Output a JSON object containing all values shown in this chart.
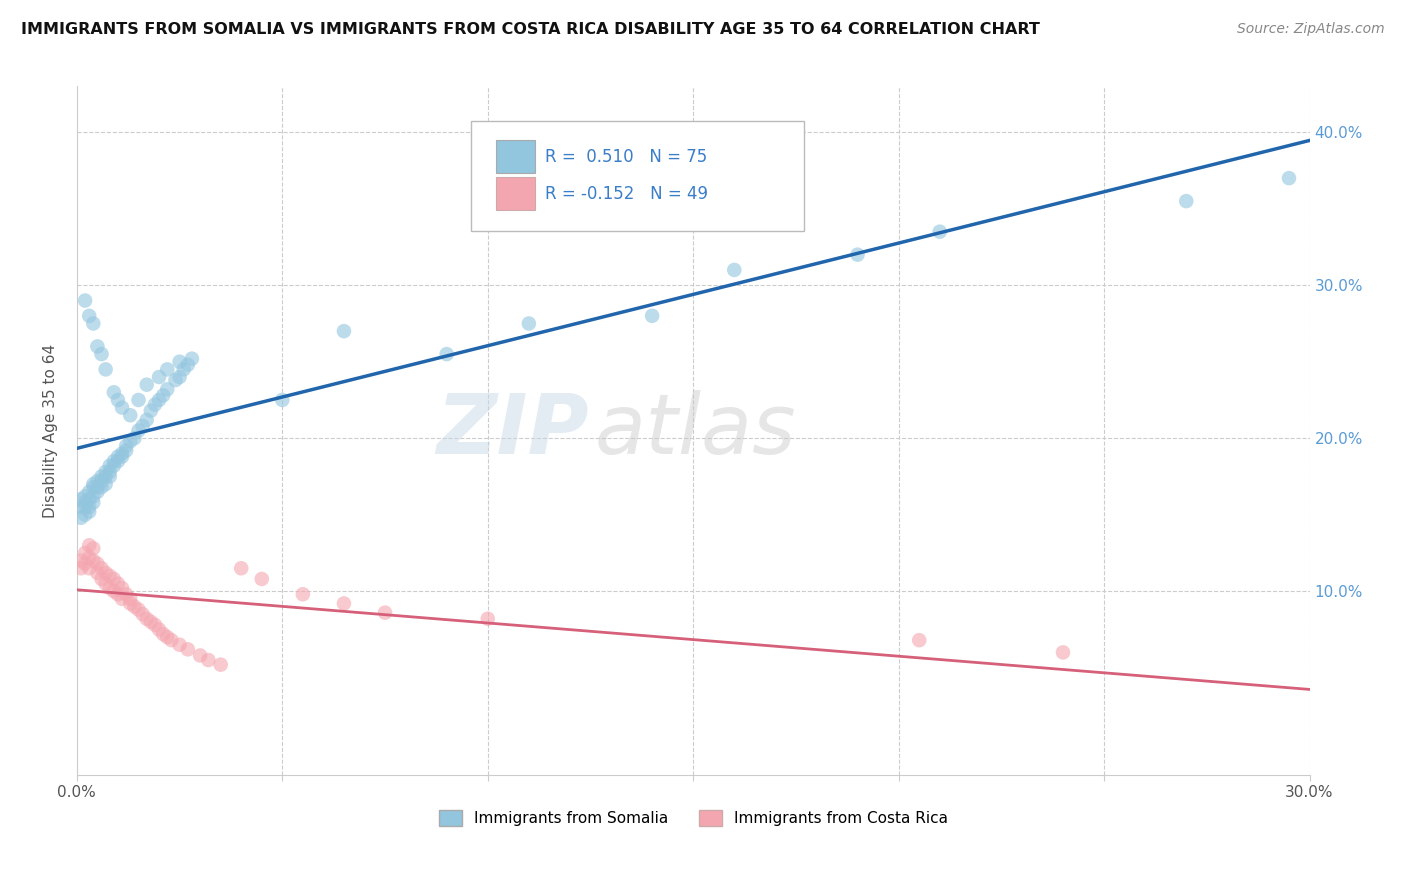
{
  "title": "IMMIGRANTS FROM SOMALIA VS IMMIGRANTS FROM COSTA RICA DISABILITY AGE 35 TO 64 CORRELATION CHART",
  "source": "Source: ZipAtlas.com",
  "ylabel": "Disability Age 35 to 64",
  "xlim": [
    0.0,
    0.3
  ],
  "ylim": [
    -0.02,
    0.43
  ],
  "somalia_R": 0.51,
  "somalia_N": 75,
  "costarica_R": -0.152,
  "costarica_N": 49,
  "somalia_color": "#92c5de",
  "costarica_color": "#f4a6b0",
  "somalia_line_color": "#2166ac",
  "costarica_line_color": "#d6607a",
  "watermark_zip": "ZIP",
  "watermark_atlas": "atlas",
  "legend_somalia": "Immigrants from Somalia",
  "legend_costarica": "Immigrants from Costa Rica",
  "somalia_x": [
    0.001,
    0.001,
    0.001,
    0.002,
    0.002,
    0.002,
    0.002,
    0.003,
    0.003,
    0.003,
    0.003,
    0.004,
    0.004,
    0.004,
    0.004,
    0.005,
    0.005,
    0.005,
    0.006,
    0.006,
    0.006,
    0.007,
    0.007,
    0.007,
    0.008,
    0.008,
    0.008,
    0.009,
    0.009,
    0.01,
    0.01,
    0.011,
    0.011,
    0.012,
    0.012,
    0.013,
    0.014,
    0.015,
    0.016,
    0.017,
    0.018,
    0.019,
    0.02,
    0.021,
    0.022,
    0.024,
    0.025,
    0.026,
    0.027,
    0.028,
    0.002,
    0.003,
    0.004,
    0.005,
    0.006,
    0.007,
    0.009,
    0.01,
    0.011,
    0.013,
    0.015,
    0.017,
    0.02,
    0.022,
    0.025,
    0.05,
    0.065,
    0.09,
    0.11,
    0.14,
    0.16,
    0.19,
    0.21,
    0.27,
    0.295
  ],
  "somalia_y": [
    0.155,
    0.16,
    0.148,
    0.158,
    0.162,
    0.155,
    0.15,
    0.165,
    0.16,
    0.155,
    0.152,
    0.17,
    0.168,
    0.162,
    0.158,
    0.172,
    0.168,
    0.165,
    0.175,
    0.172,
    0.168,
    0.178,
    0.175,
    0.17,
    0.182,
    0.178,
    0.175,
    0.185,
    0.182,
    0.188,
    0.185,
    0.19,
    0.188,
    0.195,
    0.192,
    0.198,
    0.2,
    0.205,
    0.208,
    0.212,
    0.218,
    0.222,
    0.225,
    0.228,
    0.232,
    0.238,
    0.24,
    0.245,
    0.248,
    0.252,
    0.29,
    0.28,
    0.275,
    0.26,
    0.255,
    0.245,
    0.23,
    0.225,
    0.22,
    0.215,
    0.225,
    0.235,
    0.24,
    0.245,
    0.25,
    0.225,
    0.27,
    0.255,
    0.275,
    0.28,
    0.31,
    0.32,
    0.335,
    0.355,
    0.37
  ],
  "costarica_x": [
    0.001,
    0.001,
    0.002,
    0.002,
    0.003,
    0.003,
    0.003,
    0.004,
    0.004,
    0.005,
    0.005,
    0.006,
    0.006,
    0.007,
    0.007,
    0.008,
    0.008,
    0.009,
    0.009,
    0.01,
    0.01,
    0.011,
    0.011,
    0.012,
    0.013,
    0.013,
    0.014,
    0.015,
    0.016,
    0.017,
    0.018,
    0.019,
    0.02,
    0.021,
    0.022,
    0.023,
    0.025,
    0.027,
    0.03,
    0.032,
    0.035,
    0.04,
    0.045,
    0.055,
    0.065,
    0.075,
    0.1,
    0.205,
    0.24
  ],
  "costarica_y": [
    0.12,
    0.115,
    0.125,
    0.118,
    0.13,
    0.122,
    0.115,
    0.128,
    0.12,
    0.118,
    0.112,
    0.115,
    0.108,
    0.112,
    0.105,
    0.11,
    0.102,
    0.108,
    0.1,
    0.105,
    0.098,
    0.102,
    0.095,
    0.098,
    0.092,
    0.095,
    0.09,
    0.088,
    0.085,
    0.082,
    0.08,
    0.078,
    0.075,
    0.072,
    0.07,
    0.068,
    0.065,
    0.062,
    0.058,
    0.055,
    0.052,
    0.115,
    0.108,
    0.098,
    0.092,
    0.086,
    0.082,
    0.068,
    0.06
  ]
}
